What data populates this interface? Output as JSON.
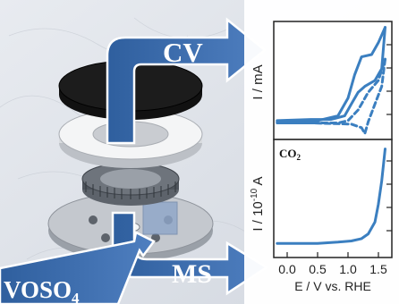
{
  "labels": {
    "cv": "CV",
    "ms": "MS",
    "voso4_main": "VOSO",
    "voso4_sub": "4",
    "co2_main": "CO",
    "co2_sub": "2"
  },
  "cv_panel": {
    "ylabel": "I / mA"
  },
  "ms_panel": {
    "ylabel_prefix": "I / 10",
    "ylabel_exp": "-10",
    "ylabel_suffix": " A"
  },
  "x_axis": {
    "label": "E / V vs. RHE",
    "ticks": [
      "0.0",
      "0.5",
      "1.0",
      "1.5"
    ]
  },
  "chart_data": [
    {
      "type": "line",
      "panel": "cv",
      "xlabel": "E / V vs. RHE",
      "ylabel": "I / mA",
      "xlim": [
        -0.05,
        1.7
      ],
      "ylim": [
        0,
        1
      ],
      "series": [
        {
          "style": "solid",
          "forward": [
            [
              0.0,
              0.15
            ],
            [
              0.3,
              0.15
            ],
            [
              0.6,
              0.16
            ],
            [
              0.9,
              0.2
            ],
            [
              1.05,
              0.35
            ],
            [
              1.15,
              0.55
            ],
            [
              1.25,
              0.7
            ],
            [
              1.4,
              0.72
            ],
            [
              1.5,
              0.82
            ],
            [
              1.6,
              0.95
            ]
          ],
          "reverse": [
            [
              1.6,
              0.95
            ],
            [
              1.55,
              0.6
            ],
            [
              1.45,
              0.5
            ],
            [
              1.3,
              0.45
            ],
            [
              1.2,
              0.4
            ],
            [
              1.1,
              0.3
            ],
            [
              1.0,
              0.2
            ],
            [
              0.8,
              0.17
            ],
            [
              0.5,
              0.17
            ],
            [
              0.0,
              0.16
            ]
          ]
        },
        {
          "style": "dashed",
          "forward": [
            [
              0.0,
              0.14
            ],
            [
              0.5,
              0.14
            ],
            [
              0.9,
              0.14
            ],
            [
              1.05,
              0.16
            ],
            [
              1.2,
              0.25
            ],
            [
              1.35,
              0.4
            ],
            [
              1.5,
              0.5
            ],
            [
              1.6,
              0.68
            ]
          ],
          "reverse": [
            [
              1.6,
              0.68
            ],
            [
              1.55,
              0.45
            ],
            [
              1.45,
              0.3
            ],
            [
              1.35,
              0.15
            ],
            [
              1.3,
              0.05
            ],
            [
              1.25,
              0.1
            ],
            [
              1.1,
              0.13
            ],
            [
              0.5,
              0.14
            ],
            [
              0.0,
              0.14
            ]
          ]
        }
      ]
    },
    {
      "type": "line",
      "panel": "ms",
      "xlabel": "E / V vs. RHE",
      "ylabel": "I / 10-10 A",
      "xlim": [
        -0.05,
        1.7
      ],
      "ylim": [
        0,
        1
      ],
      "series": [
        {
          "points": [
            [
              0.0,
              0.12
            ],
            [
              0.3,
              0.12
            ],
            [
              0.6,
              0.12
            ],
            [
              0.9,
              0.13
            ],
            [
              1.1,
              0.14
            ],
            [
              1.25,
              0.16
            ],
            [
              1.35,
              0.2
            ],
            [
              1.45,
              0.3
            ],
            [
              1.5,
              0.45
            ],
            [
              1.55,
              0.65
            ],
            [
              1.6,
              0.92
            ]
          ]
        }
      ]
    }
  ]
}
